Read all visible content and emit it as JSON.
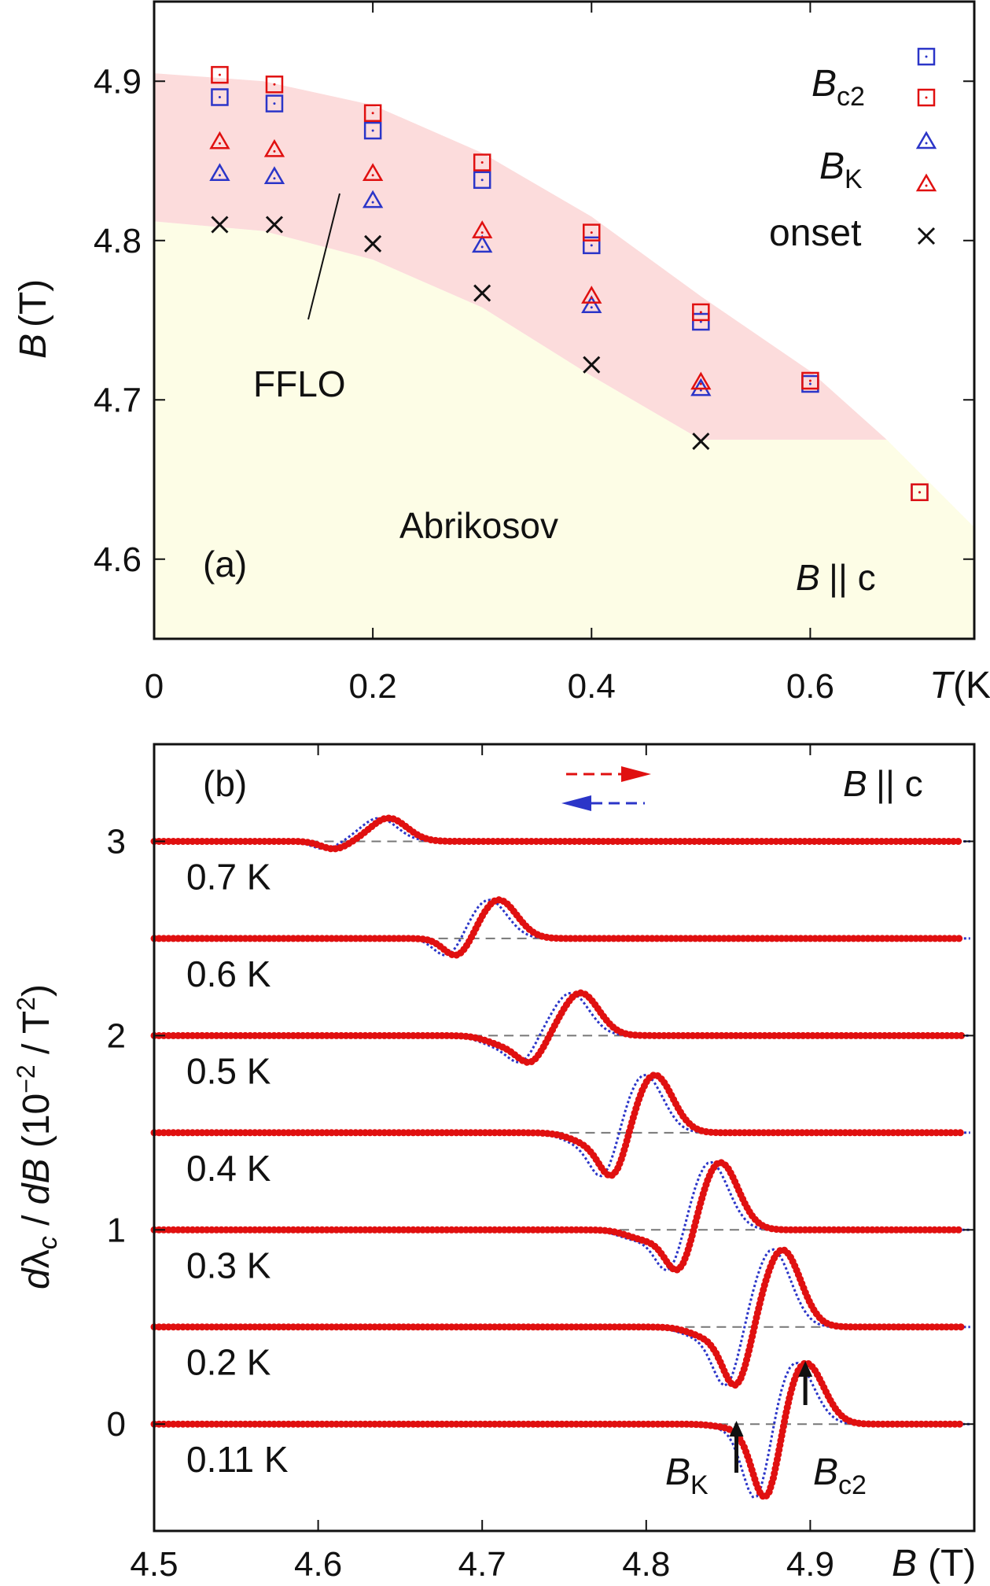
{
  "chart_data": [
    {
      "type": "scatter",
      "panel_label": "(a)",
      "xlabel_var": "T",
      "xlabel_unit": "(K)",
      "ylabel_var": "B",
      "ylabel_unit": "(T)",
      "xlim": [
        0,
        0.75
      ],
      "ylim": [
        4.55,
        4.95
      ],
      "x_ticks": [
        0,
        0.2,
        0.4,
        0.6
      ],
      "x_tick_labels": [
        "0",
        "0.2",
        "0.4",
        "0.6"
      ],
      "y_ticks": [
        4.6,
        4.7,
        4.8,
        4.9
      ],
      "y_tick_labels": [
        "4.6",
        "4.7",
        "4.8",
        "4.9"
      ],
      "region_labels": {
        "ffLo": "FFLO",
        "abrikosov": "Abrikosov"
      },
      "field_note": {
        "var": "B",
        "rest": "|| c"
      },
      "legend": {
        "bc2_var": "B",
        "bc2_sub": "c2",
        "bk_var": "B",
        "bk_sub": "K",
        "onset": "onset"
      },
      "colors": {
        "blue": "#2b35c8",
        "red": "#e01010",
        "black": "#111111",
        "ffloFill": "#fcdcdc",
        "abrikosovFill": "#fdfde6"
      },
      "series": [
        {
          "name": "Bc2 (blue)",
          "marker": "square",
          "color": "#2b35c8",
          "x": [
            0.06,
            0.11,
            0.2,
            0.3,
            0.4,
            0.5,
            0.6,
            0.7
          ],
          "y": [
            4.89,
            4.886,
            4.869,
            4.838,
            4.797,
            4.749,
            4.71,
            4.642
          ]
        },
        {
          "name": "Bc2 (red)",
          "marker": "square",
          "color": "#e01010",
          "x": [
            0.06,
            0.11,
            0.2,
            0.3,
            0.4,
            0.5,
            0.6,
            0.7
          ],
          "y": [
            4.904,
            4.898,
            4.88,
            4.849,
            4.805,
            4.755,
            4.712,
            4.642
          ]
        },
        {
          "name": "BK (blue)",
          "marker": "triangle",
          "color": "#2b35c8",
          "x": [
            0.06,
            0.11,
            0.2,
            0.3,
            0.4,
            0.5
          ],
          "y": [
            4.842,
            4.84,
            4.825,
            4.797,
            4.759,
            4.707
          ]
        },
        {
          "name": "BK (red)",
          "marker": "triangle",
          "color": "#e01010",
          "x": [
            0.06,
            0.11,
            0.2,
            0.3,
            0.4,
            0.5
          ],
          "y": [
            4.862,
            4.857,
            4.842,
            4.806,
            4.765,
            4.711
          ]
        },
        {
          "name": "onset",
          "marker": "cross",
          "color": "#111111",
          "x": [
            0.06,
            0.11,
            0.2,
            0.3,
            0.4,
            0.5
          ],
          "y": [
            4.81,
            4.81,
            4.798,
            4.767,
            4.722,
            4.674
          ]
        }
      ],
      "ffLo_upper": [
        [
          0,
          4.905
        ],
        [
          0.1,
          4.9
        ],
        [
          0.2,
          4.885
        ],
        [
          0.3,
          4.855
        ],
        [
          0.4,
          4.815
        ],
        [
          0.5,
          4.765
        ],
        [
          0.6,
          4.718
        ],
        [
          0.67,
          4.675
        ]
      ],
      "ffLo_lower": [
        [
          0.67,
          4.675
        ],
        [
          0.5,
          4.675
        ],
        [
          0.4,
          4.715
        ],
        [
          0.3,
          4.758
        ],
        [
          0.2,
          4.788
        ],
        [
          0.1,
          4.806
        ],
        [
          0,
          4.812
        ]
      ],
      "abrikosov_top": [
        [
          0,
          4.812
        ],
        [
          0.1,
          4.806
        ],
        [
          0.2,
          4.788
        ],
        [
          0.3,
          4.758
        ],
        [
          0.4,
          4.715
        ],
        [
          0.5,
          4.675
        ],
        [
          0.67,
          4.675
        ],
        [
          0.75,
          4.62
        ]
      ]
    },
    {
      "type": "line",
      "panel_label": "(b)",
      "xlabel_var": "B",
      "xlabel_unit": "(T)",
      "ylabel_text": "dλ_c / dB (10^-2 / T^2)",
      "xlim": [
        4.5,
        5.0
      ],
      "ylim": [
        -0.55,
        3.5
      ],
      "x_ticks": [
        4.5,
        4.6,
        4.7,
        4.8,
        4.9
      ],
      "x_tick_labels": [
        "4.5",
        "4.6",
        "4.7",
        "4.8",
        "4.9"
      ],
      "y_ticks": [
        0,
        1,
        2,
        3
      ],
      "y_tick_labels": [
        "0",
        "1",
        "2",
        "3"
      ],
      "field_note": {
        "var": "B",
        "rest": "|| c"
      },
      "arrow_labels": {
        "bk_var": "B",
        "bk_sub": "K",
        "bc2_var": "B",
        "bc2_sub": "c2"
      },
      "arrows": {
        "bk_x": 4.855,
        "bc2_x": 4.897
      },
      "curves": [
        {
          "label": "0.7 K",
          "offset": 3.0,
          "start": 4.58,
          "dip": [
            4.61,
            -0.04
          ],
          "peaks": [
            [
              4.643,
              0.12
            ]
          ],
          "end": 4.665
        },
        {
          "label": "0.6 K",
          "offset": 2.5,
          "start": 4.64,
          "dip": [
            4.685,
            -0.1
          ],
          "peaks": [
            [
              4.71,
              0.2
            ]
          ],
          "end": 4.735
        },
        {
          "label": "0.5 K",
          "offset": 2.0,
          "start": 4.68,
          "dip": [
            4.73,
            -0.12
          ],
          "peaks": [
            [
              4.715,
              -0.05
            ],
            [
              4.76,
              0.22
            ]
          ],
          "end": 4.79
        },
        {
          "label": "0.4 K",
          "offset": 1.5,
          "start": 4.72,
          "dip": [
            4.78,
            -0.22
          ],
          "peaks": [
            [
              4.765,
              -0.05
            ],
            [
              4.805,
              0.3
            ]
          ],
          "end": 4.84
        },
        {
          "label": "0.3 K",
          "offset": 1.0,
          "start": 4.76,
          "dip": [
            4.82,
            -0.22
          ],
          "peaks": [
            [
              4.8,
              -0.05
            ],
            [
              4.845,
              0.35
            ]
          ],
          "end": 4.88
        },
        {
          "label": "0.2 K",
          "offset": 0.5,
          "start": 4.8,
          "dip": [
            4.855,
            -0.3
          ],
          "peaks": [
            [
              4.838,
              -0.05
            ],
            [
              4.883,
              0.4
            ]
          ],
          "end": 4.91
        },
        {
          "label": "0.11 K",
          "offset": 0.0,
          "start": 4.83,
          "dip": [
            4.873,
            -0.4
          ],
          "peaks": [
            [
              4.855,
              -0.02
            ],
            [
              4.897,
              0.32
            ]
          ],
          "end": 4.93
        }
      ]
    }
  ]
}
